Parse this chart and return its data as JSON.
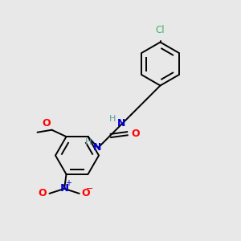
{
  "background_color": "#e8e8e8",
  "bond_color": "#000000",
  "atom_colors": {
    "N": "#0000cd",
    "O": "#ff0000",
    "Cl": "#3cb371",
    "H_color": "#5f9ea0",
    "C": "#000000"
  },
  "figsize": [
    3.0,
    3.0
  ],
  "dpi": 100
}
